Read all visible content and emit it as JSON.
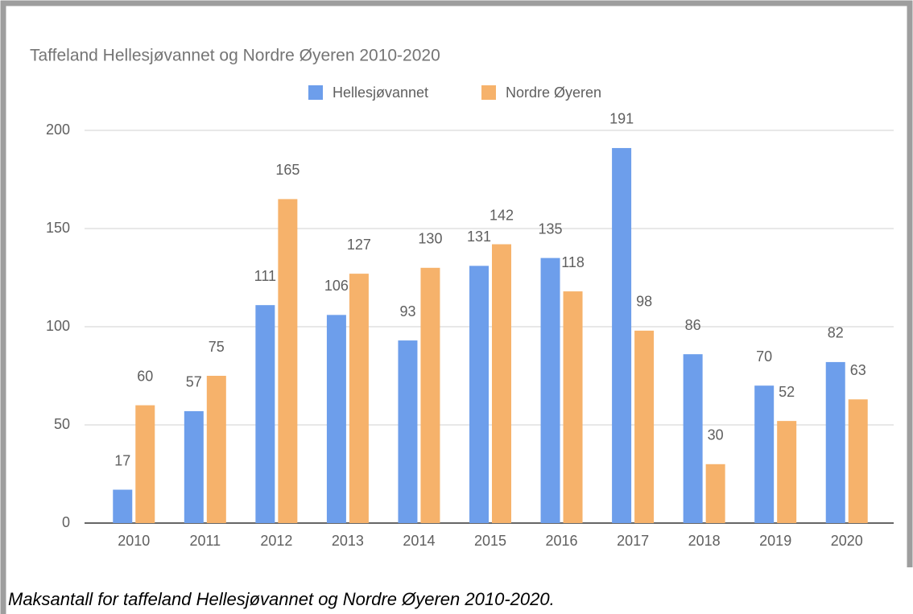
{
  "chart_data": {
    "type": "bar",
    "title": "Taffeland Hellesjøvannet og Nordre Øyeren 2010-2020",
    "categories": [
      "2010",
      "2011",
      "2012",
      "2013",
      "2014",
      "2015",
      "2016",
      "2017",
      "2018",
      "2019",
      "2020"
    ],
    "series": [
      {
        "name": "Hellesjøvannet",
        "color": "#6d9eeb",
        "values": [
          17,
          57,
          111,
          106,
          93,
          131,
          135,
          191,
          86,
          70,
          82
        ]
      },
      {
        "name": "Nordre Øyeren",
        "color": "#f6b26b",
        "values": [
          60,
          75,
          165,
          127,
          130,
          142,
          118,
          98,
          30,
          52,
          63
        ]
      }
    ],
    "ylim": [
      0,
      200
    ],
    "yticks": [
      0,
      50,
      100,
      150,
      200
    ],
    "grid": true,
    "legend": "top",
    "caption": "Maksantall for taffeland Hellesjøvannet og Nordre Øyeren 2010-2020."
  }
}
